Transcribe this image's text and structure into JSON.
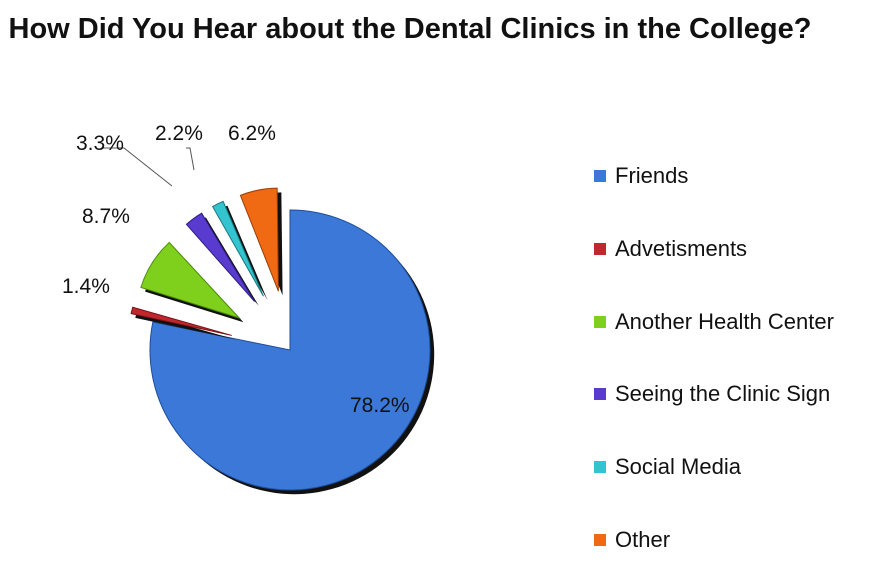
{
  "chart_data": {
    "type": "pie",
    "title": "How Did You Hear about the Dental Clinics in the College?",
    "slices": [
      {
        "label": "Friends",
        "value": 78.2,
        "display": "78.2%",
        "color": "#3b78d8",
        "dark": "#1c4e9a"
      },
      {
        "label": "Advetisments",
        "value": 1.4,
        "display": "1.4%",
        "color": "#c1272d",
        "dark": "#7a1216"
      },
      {
        "label": "Another Health Center",
        "value": 8.7,
        "display": "8.7%",
        "color": "#7fd01c",
        "dark": "#4a8a0a"
      },
      {
        "label": "Seeing the Clinic Sign",
        "value": 3.3,
        "display": "3.3%",
        "color": "#5a3bd0",
        "dark": "#2e1c80"
      },
      {
        "label": "Social Media",
        "value": 2.2,
        "display": "2.2%",
        "color": "#33c4cf",
        "dark": "#177a82"
      },
      {
        "label": "Other",
        "value": 6.2,
        "display": "6.2%",
        "color": "#f06a14",
        "dark": "#9a3e06"
      }
    ],
    "legend_position": "right",
    "exploded": true
  }
}
